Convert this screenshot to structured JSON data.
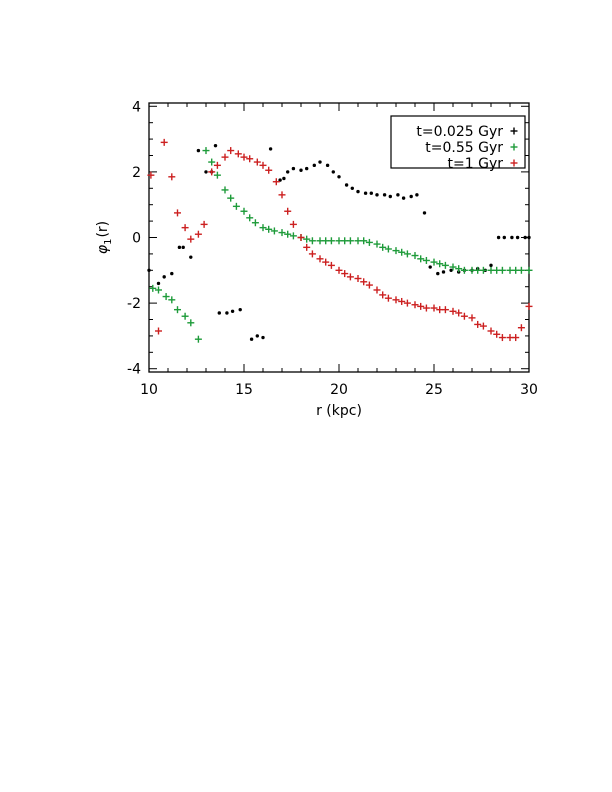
{
  "chart_data": {
    "type": "scatter",
    "xlabel": "r (kpc)",
    "ylabel_symbol": "φ",
    "ylabel_sub": "1",
    "ylabel_arg": "(r)",
    "xlim": [
      10,
      30
    ],
    "ylim": [
      -4.1,
      4.1
    ],
    "xticks": [
      10,
      15,
      20,
      25,
      30
    ],
    "yticks": [
      -4,
      -2,
      0,
      2,
      4
    ],
    "legend_position": "top-right",
    "series": [
      {
        "name": "t=0.025 Gyr",
        "color": "#000000",
        "marker": "dot",
        "points": [
          [
            10.0,
            -1.0
          ],
          [
            10.5,
            -1.4
          ],
          [
            10.8,
            -1.2
          ],
          [
            11.2,
            -1.1
          ],
          [
            11.6,
            -0.3
          ],
          [
            11.8,
            -0.3
          ],
          [
            12.2,
            -0.6
          ],
          [
            12.6,
            2.65
          ],
          [
            13.0,
            2.0
          ],
          [
            13.3,
            2.0
          ],
          [
            13.5,
            2.8
          ],
          [
            13.7,
            -2.3
          ],
          [
            14.1,
            -2.3
          ],
          [
            14.4,
            -2.25
          ],
          [
            14.8,
            -2.2
          ],
          [
            15.4,
            -3.1
          ],
          [
            15.7,
            -3.0
          ],
          [
            16.0,
            -3.05
          ],
          [
            16.4,
            2.7
          ],
          [
            16.9,
            1.75
          ],
          [
            17.1,
            1.8
          ],
          [
            17.3,
            2.0
          ],
          [
            17.6,
            2.1
          ],
          [
            18.0,
            2.05
          ],
          [
            18.3,
            2.1
          ],
          [
            18.7,
            2.2
          ],
          [
            19.0,
            2.3
          ],
          [
            19.4,
            2.2
          ],
          [
            19.7,
            2.0
          ],
          [
            20.0,
            1.85
          ],
          [
            20.4,
            1.6
          ],
          [
            20.7,
            1.5
          ],
          [
            21.0,
            1.4
          ],
          [
            21.4,
            1.35
          ],
          [
            21.7,
            1.35
          ],
          [
            22.0,
            1.3
          ],
          [
            22.4,
            1.3
          ],
          [
            22.7,
            1.25
          ],
          [
            23.1,
            1.3
          ],
          [
            23.4,
            1.2
          ],
          [
            23.8,
            1.25
          ],
          [
            24.1,
            1.3
          ],
          [
            24.5,
            0.75
          ],
          [
            24.8,
            -0.9
          ],
          [
            25.2,
            -1.1
          ],
          [
            25.5,
            -1.05
          ],
          [
            25.9,
            -1.0
          ],
          [
            26.3,
            -1.05
          ],
          [
            26.6,
            -1.0
          ],
          [
            27.0,
            -1.0
          ],
          [
            27.3,
            -0.95
          ],
          [
            27.7,
            -1.0
          ],
          [
            28.0,
            -0.85
          ],
          [
            28.4,
            0.0
          ],
          [
            28.7,
            0.0
          ],
          [
            29.1,
            0.0
          ],
          [
            29.4,
            0.0
          ],
          [
            29.8,
            0.0
          ],
          [
            30.0,
            0.0
          ]
        ]
      },
      {
        "name": "t=0.55 Gyr",
        "color": "#1e9b3a",
        "marker": "plus",
        "points": [
          [
            10.2,
            -1.55
          ],
          [
            10.5,
            -1.6
          ],
          [
            10.9,
            -1.8
          ],
          [
            11.2,
            -1.9
          ],
          [
            11.5,
            -2.2
          ],
          [
            11.9,
            -2.4
          ],
          [
            12.2,
            -2.6
          ],
          [
            12.6,
            -3.1
          ],
          [
            13.0,
            2.65
          ],
          [
            13.3,
            2.3
          ],
          [
            13.6,
            1.9
          ],
          [
            14.0,
            1.45
          ],
          [
            14.3,
            1.2
          ],
          [
            14.6,
            0.95
          ],
          [
            15.0,
            0.8
          ],
          [
            15.3,
            0.6
          ],
          [
            15.6,
            0.45
          ],
          [
            16.0,
            0.3
          ],
          [
            16.3,
            0.25
          ],
          [
            16.6,
            0.2
          ],
          [
            17.0,
            0.15
          ],
          [
            17.3,
            0.1
          ],
          [
            17.6,
            0.05
          ],
          [
            18.0,
            0.0
          ],
          [
            18.3,
            -0.05
          ],
          [
            18.6,
            -0.1
          ],
          [
            19.0,
            -0.1
          ],
          [
            19.3,
            -0.1
          ],
          [
            19.6,
            -0.1
          ],
          [
            20.0,
            -0.1
          ],
          [
            20.3,
            -0.1
          ],
          [
            20.6,
            -0.1
          ],
          [
            21.0,
            -0.1
          ],
          [
            21.3,
            -0.1
          ],
          [
            21.6,
            -0.15
          ],
          [
            22.0,
            -0.2
          ],
          [
            22.3,
            -0.3
          ],
          [
            22.6,
            -0.35
          ],
          [
            23.0,
            -0.4
          ],
          [
            23.3,
            -0.45
          ],
          [
            23.6,
            -0.5
          ],
          [
            24.0,
            -0.55
          ],
          [
            24.3,
            -0.65
          ],
          [
            24.6,
            -0.7
          ],
          [
            25.0,
            -0.75
          ],
          [
            25.3,
            -0.8
          ],
          [
            25.6,
            -0.85
          ],
          [
            26.0,
            -0.9
          ],
          [
            26.3,
            -0.95
          ],
          [
            26.6,
            -1.0
          ],
          [
            27.0,
            -1.0
          ],
          [
            27.3,
            -1.0
          ],
          [
            27.6,
            -1.0
          ],
          [
            28.0,
            -1.0
          ],
          [
            28.3,
            -1.0
          ],
          [
            28.6,
            -1.0
          ],
          [
            29.0,
            -1.0
          ],
          [
            29.3,
            -1.0
          ],
          [
            29.6,
            -1.0
          ],
          [
            30.0,
            -1.0
          ]
        ]
      },
      {
        "name": "t=1 Gyr",
        "color": "#cc2020",
        "marker": "plus",
        "points": [
          [
            10.1,
            1.9
          ],
          [
            10.5,
            -2.85
          ],
          [
            10.8,
            2.9
          ],
          [
            11.2,
            1.85
          ],
          [
            11.5,
            0.75
          ],
          [
            11.9,
            0.3
          ],
          [
            12.2,
            -0.05
          ],
          [
            12.6,
            0.1
          ],
          [
            12.9,
            0.4
          ],
          [
            13.3,
            2.0
          ],
          [
            13.6,
            2.2
          ],
          [
            14.0,
            2.45
          ],
          [
            14.3,
            2.65
          ],
          [
            14.7,
            2.55
          ],
          [
            15.0,
            2.45
          ],
          [
            15.3,
            2.4
          ],
          [
            15.7,
            2.3
          ],
          [
            16.0,
            2.2
          ],
          [
            16.3,
            2.05
          ],
          [
            16.7,
            1.7
          ],
          [
            17.0,
            1.3
          ],
          [
            17.3,
            0.8
          ],
          [
            17.6,
            0.4
          ],
          [
            18.0,
            0.0
          ],
          [
            18.3,
            -0.3
          ],
          [
            18.6,
            -0.5
          ],
          [
            19.0,
            -0.65
          ],
          [
            19.3,
            -0.75
          ],
          [
            19.6,
            -0.85
          ],
          [
            20.0,
            -1.0
          ],
          [
            20.3,
            -1.1
          ],
          [
            20.6,
            -1.2
          ],
          [
            21.0,
            -1.25
          ],
          [
            21.3,
            -1.35
          ],
          [
            21.6,
            -1.45
          ],
          [
            22.0,
            -1.6
          ],
          [
            22.3,
            -1.75
          ],
          [
            22.6,
            -1.85
          ],
          [
            23.0,
            -1.9
          ],
          [
            23.3,
            -1.95
          ],
          [
            23.6,
            -2.0
          ],
          [
            24.0,
            -2.05
          ],
          [
            24.3,
            -2.1
          ],
          [
            24.6,
            -2.15
          ],
          [
            25.0,
            -2.15
          ],
          [
            25.3,
            -2.2
          ],
          [
            25.6,
            -2.2
          ],
          [
            26.0,
            -2.25
          ],
          [
            26.3,
            -2.3
          ],
          [
            26.6,
            -2.4
          ],
          [
            27.0,
            -2.45
          ],
          [
            27.3,
            -2.65
          ],
          [
            27.6,
            -2.7
          ],
          [
            28.0,
            -2.85
          ],
          [
            28.3,
            -2.95
          ],
          [
            28.6,
            -3.05
          ],
          [
            29.0,
            -3.05
          ],
          [
            29.3,
            -3.05
          ],
          [
            29.6,
            -2.75
          ],
          [
            30.0,
            -2.1
          ]
        ]
      }
    ]
  }
}
